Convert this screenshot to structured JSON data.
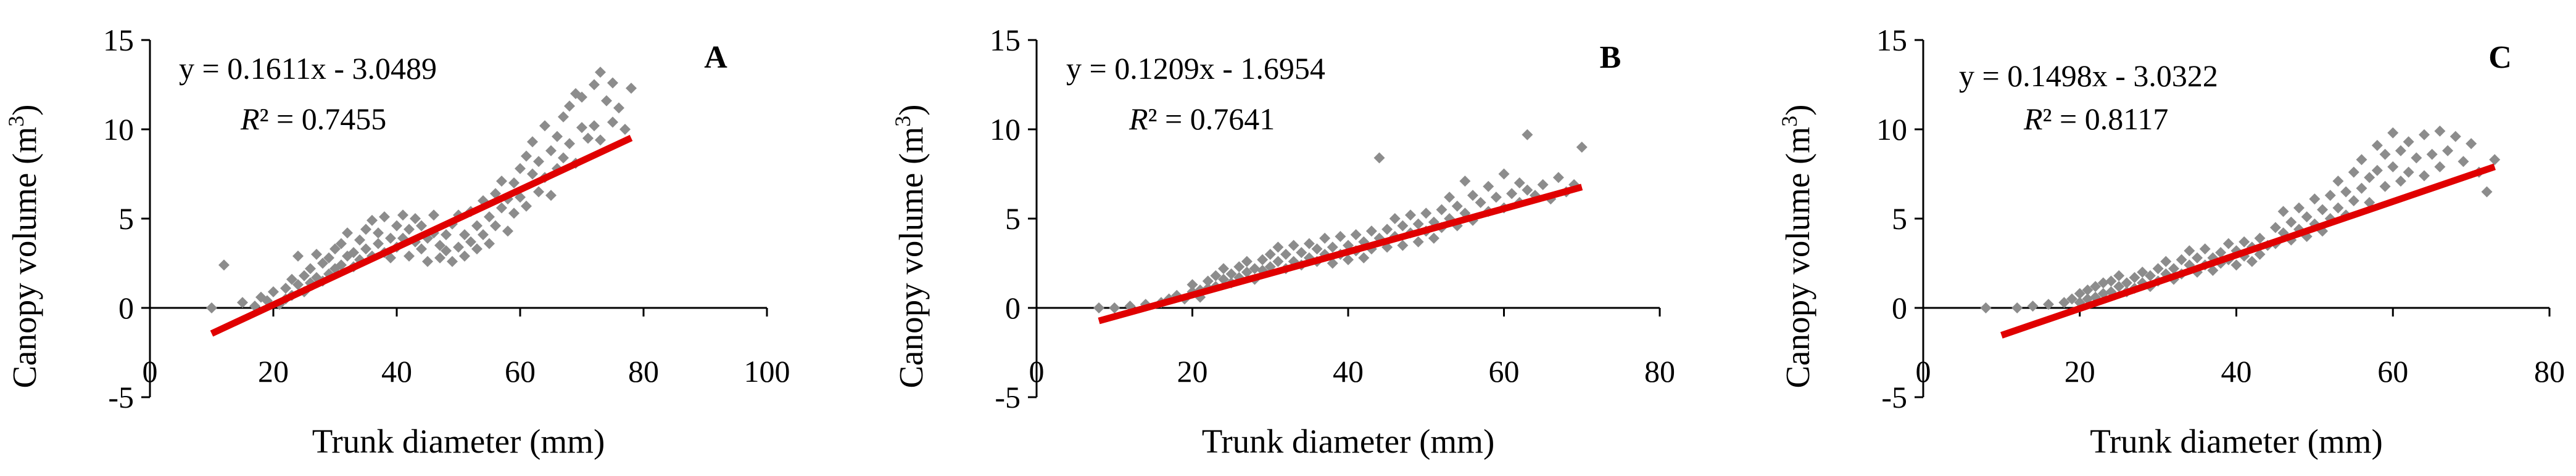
{
  "chart_data": [
    {
      "type": "scatter",
      "panel_label": "A",
      "xlabel": "Trunk diameter (mm)",
      "ylabel": "Canopy volume (m",
      "ylabel_sup": "3",
      "ylabel_close": ")",
      "xlim": [
        0,
        100
      ],
      "ylim": [
        -5,
        15
      ],
      "xticks": [
        0,
        20,
        40,
        60,
        80,
        100
      ],
      "xtick_labels": [
        "0",
        "20",
        "40",
        "60",
        "80",
        "100"
      ],
      "yticks": [
        -5,
        0,
        5,
        10,
        15
      ],
      "ytick_labels": [
        "-5",
        "0",
        "5",
        "10",
        "15"
      ],
      "equation": "y = 0.1611x - 3.0489",
      "r2_symbol": "R",
      "r2_value": "² = 0.7455",
      "trendline": {
        "slope": 0.1611,
        "intercept": -3.0489,
        "x_range": [
          10,
          78
        ],
        "color": "#e00000"
      },
      "point_color": "#8c8c8c",
      "x_range": [
        10,
        78
      ],
      "points": [
        [
          10,
          0
        ],
        [
          12,
          2.4
        ],
        [
          15,
          0.3
        ],
        [
          17,
          0.1
        ],
        [
          18,
          0.6
        ],
        [
          19,
          0.4
        ],
        [
          20,
          0.9
        ],
        [
          21,
          0.2
        ],
        [
          22,
          1.1
        ],
        [
          22,
          0.5
        ],
        [
          23,
          1.6
        ],
        [
          23,
          0.7
        ],
        [
          24,
          1.3
        ],
        [
          24,
          2.9
        ],
        [
          25,
          1.8
        ],
        [
          25,
          0.9
        ],
        [
          26,
          2.2
        ],
        [
          26,
          1.4
        ],
        [
          27,
          1.7
        ],
        [
          27,
          3
        ],
        [
          28,
          2.5
        ],
        [
          28,
          1.5
        ],
        [
          29,
          2.8
        ],
        [
          29,
          1.9
        ],
        [
          30,
          3.3
        ],
        [
          30,
          2.2
        ],
        [
          31,
          2.4
        ],
        [
          31,
          3.6
        ],
        [
          32,
          2.9
        ],
        [
          32,
          4.2
        ],
        [
          33,
          3.1
        ],
        [
          33,
          2.3
        ],
        [
          34,
          3.8
        ],
        [
          34,
          2.7
        ],
        [
          35,
          4.4
        ],
        [
          35,
          3.3
        ],
        [
          36,
          2.9
        ],
        [
          36,
          4.9
        ],
        [
          37,
          3.6
        ],
        [
          37,
          4.2
        ],
        [
          38,
          3.1
        ],
        [
          38,
          5.1
        ],
        [
          39,
          3.9
        ],
        [
          39,
          2.8
        ],
        [
          40,
          4.6
        ],
        [
          40,
          3.4
        ],
        [
          41,
          5.2
        ],
        [
          41,
          3.9
        ],
        [
          42,
          4.4
        ],
        [
          42,
          2.9
        ],
        [
          43,
          3.7
        ],
        [
          43,
          5
        ],
        [
          44,
          3.3
        ],
        [
          44,
          4.6
        ],
        [
          45,
          3.9
        ],
        [
          45,
          2.6
        ],
        [
          46,
          4.2
        ],
        [
          46,
          5.2
        ],
        [
          47,
          3.5
        ],
        [
          47,
          2.8
        ],
        [
          48,
          4.1
        ],
        [
          48,
          3.2
        ],
        [
          49,
          2.6
        ],
        [
          49,
          4.7
        ],
        [
          50,
          3.4
        ],
        [
          50,
          5.2
        ],
        [
          51,
          4.1
        ],
        [
          51,
          2.9
        ],
        [
          52,
          3.7
        ],
        [
          52,
          5.4
        ],
        [
          53,
          4.6
        ],
        [
          53,
          3.3
        ],
        [
          54,
          6
        ],
        [
          54,
          4.1
        ],
        [
          55,
          5.1
        ],
        [
          55,
          3.6
        ],
        [
          56,
          6.4
        ],
        [
          56,
          4.6
        ],
        [
          57,
          5.6
        ],
        [
          57,
          7.1
        ],
        [
          58,
          6.1
        ],
        [
          58,
          4.3
        ],
        [
          59,
          7
        ],
        [
          59,
          5.3
        ],
        [
          60,
          7.8
        ],
        [
          60,
          6.2
        ],
        [
          61,
          8.5
        ],
        [
          61,
          5.7
        ],
        [
          62,
          7.5
        ],
        [
          62,
          9.3
        ],
        [
          63,
          6.5
        ],
        [
          63,
          8.2
        ],
        [
          64,
          10.2
        ],
        [
          64,
          7.3
        ],
        [
          65,
          8.8
        ],
        [
          65,
          6.3
        ],
        [
          66,
          9.6
        ],
        [
          66,
          7.8
        ],
        [
          67,
          10.7
        ],
        [
          67,
          8.4
        ],
        [
          68,
          11.3
        ],
        [
          68,
          9.2
        ],
        [
          69,
          12
        ],
        [
          69,
          8.1
        ],
        [
          70,
          10.1
        ],
        [
          70,
          11.8
        ],
        [
          71,
          9.5
        ],
        [
          72,
          12.5
        ],
        [
          72,
          10.2
        ],
        [
          73,
          13.2
        ],
        [
          73,
          9.4
        ],
        [
          74,
          11.6
        ],
        [
          75,
          10.4
        ],
        [
          75,
          12.6
        ],
        [
          76,
          11.2
        ],
        [
          77,
          10
        ],
        [
          78,
          12.3
        ]
      ]
    },
    {
      "type": "scatter",
      "panel_label": "B",
      "xlabel": "Trunk diameter (mm)",
      "ylabel": "Canopy volume (m",
      "ylabel_sup": "3",
      "ylabel_close": ")",
      "xlim": [
        0,
        80
      ],
      "ylim": [
        -5,
        15
      ],
      "xticks": [
        0,
        20,
        40,
        60,
        80
      ],
      "xtick_labels": [
        "0",
        "20",
        "40",
        "60",
        "80"
      ],
      "yticks": [
        -5,
        0,
        5,
        10,
        15
      ],
      "ytick_labels": [
        "-5",
        "0",
        "5",
        "10",
        "15"
      ],
      "equation": "y = 0.1209x - 1.6954",
      "r2_symbol": "R",
      "r2_value": "² = 0.7641",
      "trendline": {
        "slope": 0.1209,
        "intercept": -1.6954,
        "x_range": [
          8,
          70
        ],
        "color": "#e00000"
      },
      "point_color": "#8c8c8c",
      "x_range": [
        8,
        70
      ],
      "points": [
        [
          8,
          0
        ],
        [
          10,
          0
        ],
        [
          12,
          0.1
        ],
        [
          14,
          0.2
        ],
        [
          16,
          0.3
        ],
        [
          17,
          0.5
        ],
        [
          18,
          0.7
        ],
        [
          19,
          0.5
        ],
        [
          20,
          0.9
        ],
        [
          20,
          1.3
        ],
        [
          21,
          1
        ],
        [
          21,
          0.6
        ],
        [
          22,
          1.5
        ],
        [
          22,
          1.1
        ],
        [
          23,
          1.8
        ],
        [
          23,
          1.2
        ],
        [
          24,
          1.6
        ],
        [
          24,
          2.2
        ],
        [
          25,
          1.9
        ],
        [
          25,
          1.4
        ],
        [
          26,
          2.3
        ],
        [
          26,
          1.7
        ],
        [
          27,
          2.6
        ],
        [
          27,
          2
        ],
        [
          28,
          2.2
        ],
        [
          28,
          1.6
        ],
        [
          29,
          2.7
        ],
        [
          29,
          2.1
        ],
        [
          30,
          3
        ],
        [
          30,
          2.3
        ],
        [
          31,
          2.6
        ],
        [
          31,
          3.4
        ],
        [
          32,
          2.2
        ],
        [
          32,
          3
        ],
        [
          33,
          3.5
        ],
        [
          33,
          2.6
        ],
        [
          34,
          3.1
        ],
        [
          34,
          2.4
        ],
        [
          35,
          3.6
        ],
        [
          35,
          2.8
        ],
        [
          36,
          3.3
        ],
        [
          36,
          2.6
        ],
        [
          37,
          3.9
        ],
        [
          37,
          3
        ],
        [
          38,
          3.4
        ],
        [
          38,
          2.5
        ],
        [
          39,
          4
        ],
        [
          39,
          3
        ],
        [
          40,
          3.5
        ],
        [
          40,
          2.7
        ],
        [
          41,
          4.1
        ],
        [
          41,
          3.2
        ],
        [
          42,
          3.7
        ],
        [
          42,
          2.8
        ],
        [
          43,
          4.3
        ],
        [
          43,
          3.3
        ],
        [
          44,
          3.9
        ],
        [
          44,
          8.4
        ],
        [
          45,
          4.4
        ],
        [
          45,
          3.4
        ],
        [
          46,
          5
        ],
        [
          46,
          4
        ],
        [
          47,
          4.6
        ],
        [
          47,
          3.5
        ],
        [
          48,
          5.2
        ],
        [
          48,
          4.2
        ],
        [
          49,
          4.7
        ],
        [
          49,
          3.7
        ],
        [
          50,
          5.3
        ],
        [
          50,
          4.3
        ],
        [
          51,
          4.8
        ],
        [
          51,
          3.9
        ],
        [
          52,
          5.5
        ],
        [
          52,
          4.5
        ],
        [
          53,
          6.2
        ],
        [
          53,
          5
        ],
        [
          54,
          5.7
        ],
        [
          54,
          4.6
        ],
        [
          55,
          7.1
        ],
        [
          55,
          5.3
        ],
        [
          56,
          6.3
        ],
        [
          56,
          4.9
        ],
        [
          57,
          5.9
        ],
        [
          58,
          6.8
        ],
        [
          58,
          5.4
        ],
        [
          59,
          6.2
        ],
        [
          60,
          7.5
        ],
        [
          60,
          5.6
        ],
        [
          61,
          6.4
        ],
        [
          62,
          7
        ],
        [
          62,
          5.9
        ],
        [
          63,
          9.7
        ],
        [
          63,
          6.6
        ],
        [
          64,
          6.3
        ],
        [
          65,
          6.9
        ],
        [
          66,
          6.1
        ],
        [
          67,
          7.3
        ],
        [
          68,
          6.5
        ],
        [
          69,
          6.9
        ],
        [
          70,
          9
        ]
      ]
    },
    {
      "type": "scatter",
      "panel_label": "C",
      "xlabel": "Trunk diameter (mm)",
      "ylabel": "Canopy volume (m",
      "ylabel_sup": "3",
      "ylabel_close": ")",
      "xlim": [
        0,
        80
      ],
      "ylim": [
        -5,
        15
      ],
      "xticks": [
        0,
        20,
        40,
        60,
        80
      ],
      "xtick_labels": [
        "0",
        "20",
        "40",
        "60",
        "80"
      ],
      "yticks": [
        -5,
        0,
        5,
        10,
        15
      ],
      "ytick_labels": [
        "-5",
        "0",
        "5",
        "10",
        "15"
      ],
      "equation": "y = 0.1498x - 3.0322",
      "r2_symbol": "R",
      "r2_value": "² = 0.8117",
      "trendline": {
        "slope": 0.1498,
        "intercept": -3.0322,
        "x_range": [
          10,
          73
        ],
        "color": "#e00000"
      },
      "point_color": "#8c8c8c",
      "x_range": [
        8,
        73
      ],
      "points": [
        [
          8,
          0
        ],
        [
          12,
          0
        ],
        [
          14,
          0.1
        ],
        [
          16,
          0.2
        ],
        [
          18,
          0.3
        ],
        [
          19,
          0.5
        ],
        [
          20,
          0.8
        ],
        [
          20,
          0.3
        ],
        [
          21,
          1
        ],
        [
          21,
          0.5
        ],
        [
          22,
          1.2
        ],
        [
          22,
          0.6
        ],
        [
          23,
          1.4
        ],
        [
          23,
          0.8
        ],
        [
          24,
          1.5
        ],
        [
          24,
          0.9
        ],
        [
          25,
          1.2
        ],
        [
          25,
          1.8
        ],
        [
          26,
          1.4
        ],
        [
          26,
          0.9
        ],
        [
          27,
          1.7
        ],
        [
          27,
          1.1
        ],
        [
          28,
          2
        ],
        [
          28,
          1.4
        ],
        [
          29,
          1.8
        ],
        [
          29,
          1.2
        ],
        [
          30,
          2.2
        ],
        [
          30,
          1.5
        ],
        [
          31,
          1.9
        ],
        [
          31,
          2.6
        ],
        [
          32,
          2.2
        ],
        [
          32,
          1.6
        ],
        [
          33,
          2.7
        ],
        [
          33,
          1.9
        ],
        [
          34,
          2.4
        ],
        [
          34,
          3.2
        ],
        [
          35,
          2.8
        ],
        [
          35,
          2
        ],
        [
          36,
          3.3
        ],
        [
          36,
          2.4
        ],
        [
          37,
          2.8
        ],
        [
          37,
          2.1
        ],
        [
          38,
          3.1
        ],
        [
          38,
          2.5
        ],
        [
          39,
          3.6
        ],
        [
          39,
          2.7
        ],
        [
          40,
          3.2
        ],
        [
          40,
          2.4
        ],
        [
          41,
          3.7
        ],
        [
          41,
          2.9
        ],
        [
          42,
          3.4
        ],
        [
          42,
          2.6
        ],
        [
          43,
          3.9
        ],
        [
          43,
          3
        ],
        [
          44,
          3.5
        ],
        [
          45,
          4.5
        ],
        [
          45,
          3.6
        ],
        [
          46,
          5.4
        ],
        [
          46,
          4.2
        ],
        [
          47,
          4.8
        ],
        [
          47,
          3.8
        ],
        [
          48,
          5.6
        ],
        [
          48,
          4.4
        ],
        [
          49,
          5.1
        ],
        [
          49,
          4
        ],
        [
          50,
          6.1
        ],
        [
          50,
          4.7
        ],
        [
          51,
          5.5
        ],
        [
          51,
          4.3
        ],
        [
          52,
          6.3
        ],
        [
          52,
          5
        ],
        [
          53,
          7.1
        ],
        [
          53,
          5.6
        ],
        [
          54,
          6.5
        ],
        [
          54,
          5.2
        ],
        [
          55,
          7.6
        ],
        [
          55,
          6
        ],
        [
          56,
          8.3
        ],
        [
          56,
          6.7
        ],
        [
          57,
          7.3
        ],
        [
          57,
          5.9
        ],
        [
          58,
          9.1
        ],
        [
          58,
          7.7
        ],
        [
          59,
          8.6
        ],
        [
          59,
          6.8
        ],
        [
          60,
          9.8
        ],
        [
          60,
          7.9
        ],
        [
          61,
          8.8
        ],
        [
          61,
          7.1
        ],
        [
          62,
          9.3
        ],
        [
          62,
          7.6
        ],
        [
          63,
          8.4
        ],
        [
          64,
          9.7
        ],
        [
          64,
          7.4
        ],
        [
          65,
          8.6
        ],
        [
          66,
          9.9
        ],
        [
          66,
          7.9
        ],
        [
          67,
          8.8
        ],
        [
          68,
          9.6
        ],
        [
          69,
          8.2
        ],
        [
          70,
          9.2
        ],
        [
          71,
          7.6
        ],
        [
          72,
          6.5
        ],
        [
          73,
          8.3
        ]
      ]
    }
  ]
}
